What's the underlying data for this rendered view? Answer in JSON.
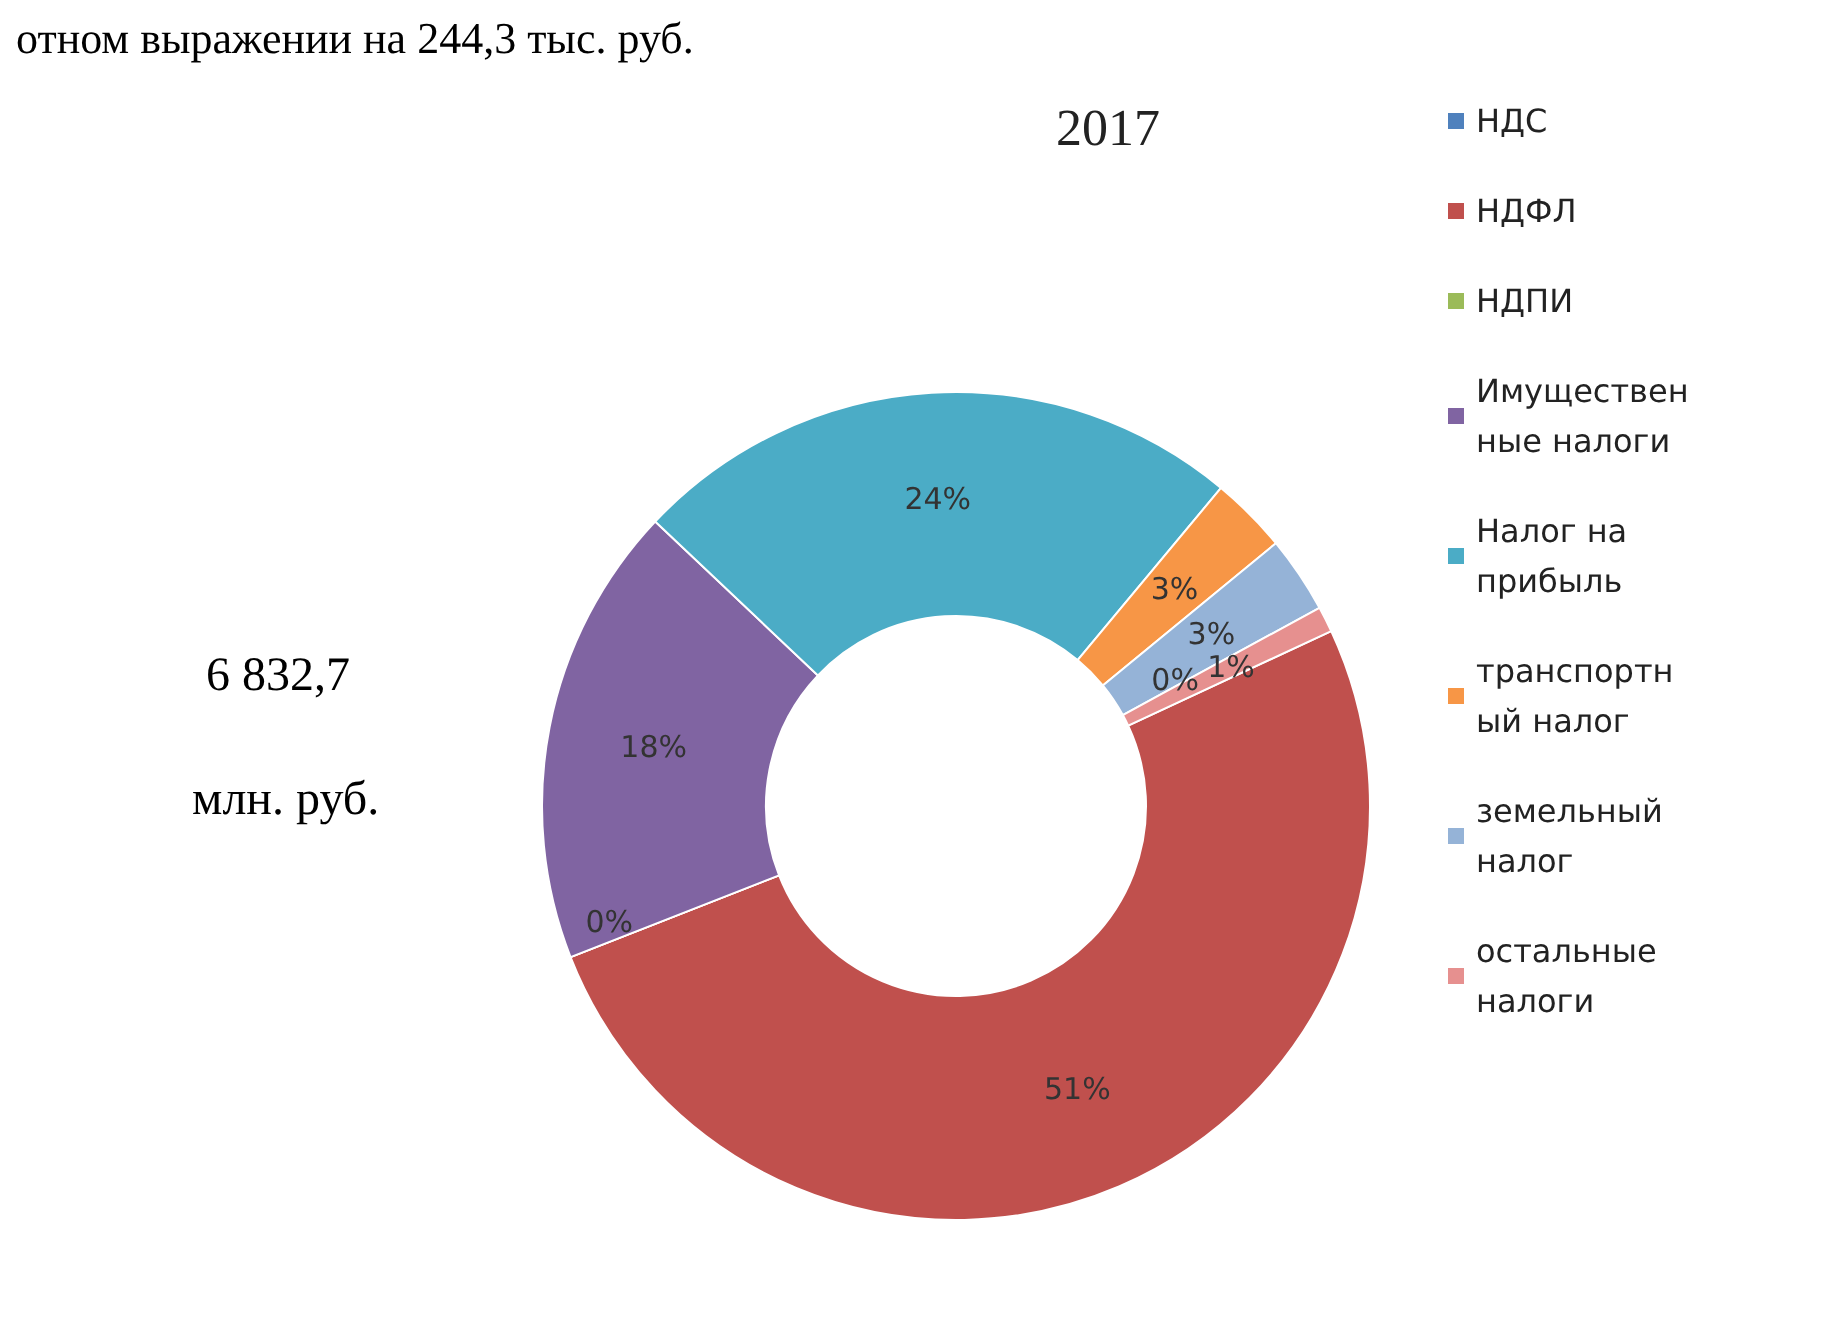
{
  "chart_data": {
    "type": "donut",
    "title": "2017",
    "categories": [
      "НДС",
      "НДФЛ",
      "НДПИ",
      "Имущественные налоги",
      "Налог на прибыль",
      "транспортный налог",
      "земельный налог",
      "остальные налоги"
    ],
    "values": [
      0,
      51,
      0,
      18,
      24,
      3,
      3,
      1
    ],
    "value_labels": [
      "0%",
      "51%",
      "0%",
      "18%",
      "24%",
      "3%",
      "3%",
      "1%"
    ],
    "colors": [
      "#4f81bd",
      "#c0504d",
      "#9bbb59",
      "#8064a2",
      "#4bacc6",
      "#f79646",
      "#95b3d7",
      "#e6908f"
    ],
    "legend": "right",
    "annotations": [
      "отном выражении на 244,3 тыс. руб.",
      "6 832,7",
      "млн. руб."
    ]
  }
}
